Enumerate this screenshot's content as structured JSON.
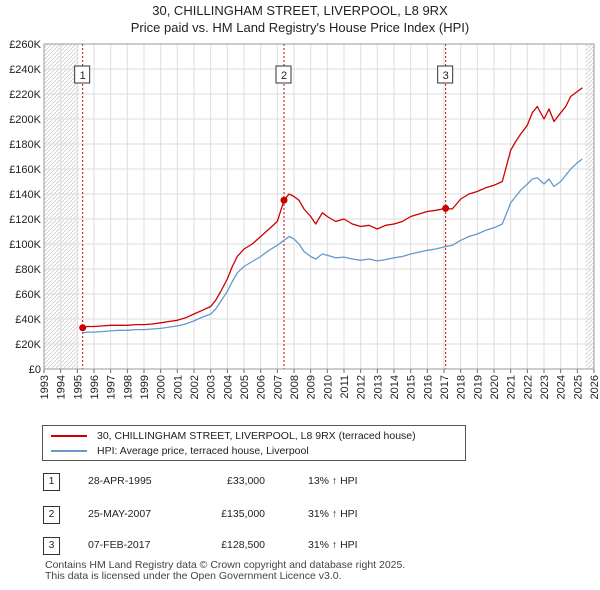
{
  "title": "30, CHILLINGHAM STREET, LIVERPOOL, L8 9RX",
  "subtitle": "Price paid vs. HM Land Registry's House Price Index (HPI)",
  "colors": {
    "property": "#cc0000",
    "hpi": "#6699cc",
    "grid": "#dddddd",
    "vline": "#cc0000"
  },
  "chart_data": {
    "type": "line",
    "title": "30, CHILLINGHAM STREET, LIVERPOOL, L8 9RX",
    "subtitle": "Price paid vs. HM Land Registry's House Price Index (HPI)",
    "xlabel": "",
    "ylabel": "",
    "xlim": [
      1993,
      2026
    ],
    "ylim": [
      0,
      260000
    ],
    "x_ticks": [
      "1993",
      "1994",
      "1995",
      "1996",
      "1997",
      "1998",
      "1999",
      "2000",
      "2001",
      "2002",
      "2003",
      "2004",
      "2005",
      "2006",
      "2007",
      "2008",
      "2009",
      "2010",
      "2011",
      "2012",
      "2013",
      "2014",
      "2015",
      "2016",
      "2017",
      "2018",
      "2019",
      "2020",
      "2021",
      "2022",
      "2023",
      "2024",
      "2025",
      "2026"
    ],
    "y_ticks": [
      {
        "value": 0,
        "label": "£0"
      },
      {
        "value": 20000,
        "label": "£20K"
      },
      {
        "value": 40000,
        "label": "£40K"
      },
      {
        "value": 60000,
        "label": "£60K"
      },
      {
        "value": 80000,
        "label": "£80K"
      },
      {
        "value": 100000,
        "label": "£100K"
      },
      {
        "value": 120000,
        "label": "£120K"
      },
      {
        "value": 140000,
        "label": "£140K"
      },
      {
        "value": 160000,
        "label": "£160K"
      },
      {
        "value": 180000,
        "label": "£180K"
      },
      {
        "value": 200000,
        "label": "£200K"
      },
      {
        "value": 220000,
        "label": "£220K"
      },
      {
        "value": 240000,
        "label": "£240K"
      },
      {
        "value": 260000,
        "label": "£260K"
      }
    ],
    "series": [
      {
        "name": "30, CHILLINGHAM STREET, LIVERPOOL, L8 9RX (terraced house)",
        "color": "#cc0000",
        "x": [
          1995.32,
          1995.6,
          1996,
          1996.5,
          1997,
          1997.5,
          1998,
          1998.5,
          1999,
          1999.5,
          2000,
          2000.5,
          2001,
          2001.5,
          2002,
          2002.5,
          2003,
          2003.3,
          2003.6,
          2004,
          2004.3,
          2004.6,
          2005,
          2005.5,
          2006,
          2006.5,
          2007,
          2007.4,
          2007.7,
          2008,
          2008.3,
          2008.6,
          2009,
          2009.3,
          2009.7,
          2010,
          2010.5,
          2011,
          2011.5,
          2012,
          2012.5,
          2013,
          2013.5,
          2014,
          2014.5,
          2015,
          2015.5,
          2016,
          2016.5,
          2017.1,
          2017.5,
          2018,
          2018.5,
          2019,
          2019.5,
          2020,
          2020.5,
          2021,
          2021.3,
          2021.6,
          2022,
          2022.3,
          2022.6,
          2023,
          2023.3,
          2023.6,
          2024,
          2024.3,
          2024.6,
          2025,
          2025.3
        ],
        "values": [
          33000,
          34000,
          34000,
          34500,
          35000,
          35000,
          35000,
          35500,
          35500,
          36000,
          37000,
          38000,
          39000,
          41000,
          44000,
          47000,
          50000,
          55000,
          62000,
          72000,
          82000,
          90000,
          96000,
          100000,
          106000,
          112000,
          118000,
          135000,
          140000,
          138000,
          135000,
          128000,
          122000,
          116000,
          125000,
          122000,
          118000,
          120000,
          116000,
          114000,
          115000,
          112000,
          115000,
          116000,
          118000,
          122000,
          124000,
          126000,
          127000,
          128500,
          128000,
          136000,
          140000,
          142000,
          145000,
          147000,
          150000,
          175000,
          182000,
          188000,
          195000,
          205000,
          210000,
          200000,
          208000,
          198000,
          205000,
          210000,
          218000,
          222000,
          225000
        ]
      },
      {
        "name": "HPI: Average price, terraced house, Liverpool",
        "color": "#6699cc",
        "x": [
          1995.32,
          1995.6,
          1996,
          1996.5,
          1997,
          1997.5,
          1998,
          1998.5,
          1999,
          1999.5,
          2000,
          2000.5,
          2001,
          2001.5,
          2002,
          2002.5,
          2003,
          2003.3,
          2003.6,
          2004,
          2004.3,
          2004.6,
          2005,
          2005.5,
          2006,
          2006.5,
          2007,
          2007.4,
          2007.7,
          2008,
          2008.3,
          2008.6,
          2009,
          2009.3,
          2009.7,
          2010,
          2010.5,
          2011,
          2011.5,
          2012,
          2012.5,
          2013,
          2013.5,
          2014,
          2014.5,
          2015,
          2015.5,
          2016,
          2016.5,
          2017.1,
          2017.5,
          2018,
          2018.5,
          2019,
          2019.5,
          2020,
          2020.5,
          2021,
          2021.3,
          2021.6,
          2022,
          2022.3,
          2022.6,
          2023,
          2023.3,
          2023.6,
          2024,
          2024.3,
          2024.6,
          2025,
          2025.3
        ],
        "values": [
          29000,
          29500,
          29500,
          30000,
          30500,
          31000,
          31000,
          31500,
          31500,
          32000,
          32500,
          33500,
          34500,
          36000,
          38500,
          41500,
          44000,
          48000,
          54000,
          62000,
          70000,
          77000,
          82000,
          86000,
          90000,
          95000,
          99000,
          103000,
          106000,
          104000,
          100000,
          94000,
          90000,
          88000,
          92000,
          91000,
          89000,
          89500,
          88000,
          87000,
          88000,
          86500,
          87500,
          89000,
          90000,
          92000,
          93500,
          95000,
          96000,
          98000,
          99000,
          103000,
          106000,
          108000,
          111000,
          113000,
          116000,
          133000,
          138000,
          143000,
          148000,
          152000,
          153000,
          148000,
          152000,
          146000,
          150000,
          155000,
          160000,
          165000,
          168000
        ]
      }
    ],
    "transactions": [
      {
        "id": "1",
        "x": 1995.32,
        "price": 33000
      },
      {
        "id": "2",
        "x": 2007.4,
        "price": 135000
      },
      {
        "id": "3",
        "x": 2017.1,
        "price": 128500
      }
    ],
    "legend_position": "below"
  },
  "legend": {
    "items": [
      {
        "label": "30, CHILLINGHAM STREET, LIVERPOOL, L8 9RX (terraced house)"
      },
      {
        "label": "HPI: Average price, terraced house, Liverpool"
      }
    ]
  },
  "transactions_table": [
    {
      "num": "1",
      "date": "28-APR-1995",
      "price": "£33,000",
      "hpi": "13% ↑ HPI"
    },
    {
      "num": "2",
      "date": "25-MAY-2007",
      "price": "£135,000",
      "hpi": "31% ↑ HPI"
    },
    {
      "num": "3",
      "date": "07-FEB-2017",
      "price": "£128,500",
      "hpi": "31% ↑ HPI"
    }
  ],
  "footer": {
    "line1": "Contains HM Land Registry data © Crown copyright and database right 2025.",
    "line2": "This data is licensed under the Open Government Licence v3.0."
  }
}
